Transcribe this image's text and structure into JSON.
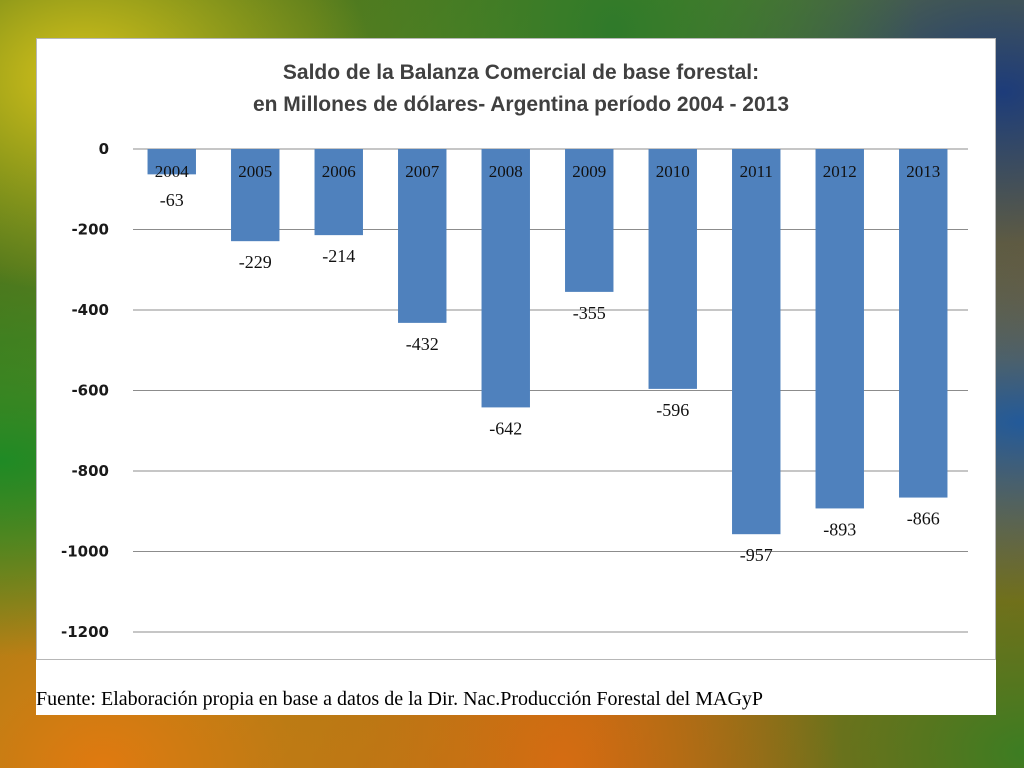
{
  "chart_data": {
    "type": "bar",
    "title": "Saldo de la Balanza Comercial de base forestal:",
    "subtitle": "en Millones de dólares- Argentina período 2004 - 2013",
    "categories": [
      "2004",
      "2005",
      "2006",
      "2007",
      "2008",
      "2009",
      "2010",
      "2011",
      "2012",
      "2013"
    ],
    "values": [
      -63,
      -229,
      -214,
      -432,
      -642,
      -355,
      -596,
      -957,
      -893,
      -866
    ],
    "data_labels": [
      "-63",
      "-229",
      "-214",
      "-432",
      "-642",
      "-355",
      "-596",
      "-957",
      "-893",
      "-866"
    ],
    "ylim": [
      -1200,
      0
    ],
    "yticks": [
      0,
      -200,
      -400,
      -600,
      -800,
      -1000,
      -1200
    ],
    "xlabel": "",
    "ylabel": "",
    "grid": true,
    "legend": "none",
    "bar_color": "#4f81bd"
  },
  "source_note": "Fuente: Elaboración propia en base a datos de la Dir. Nac.Producción Forestal del MAGyP"
}
